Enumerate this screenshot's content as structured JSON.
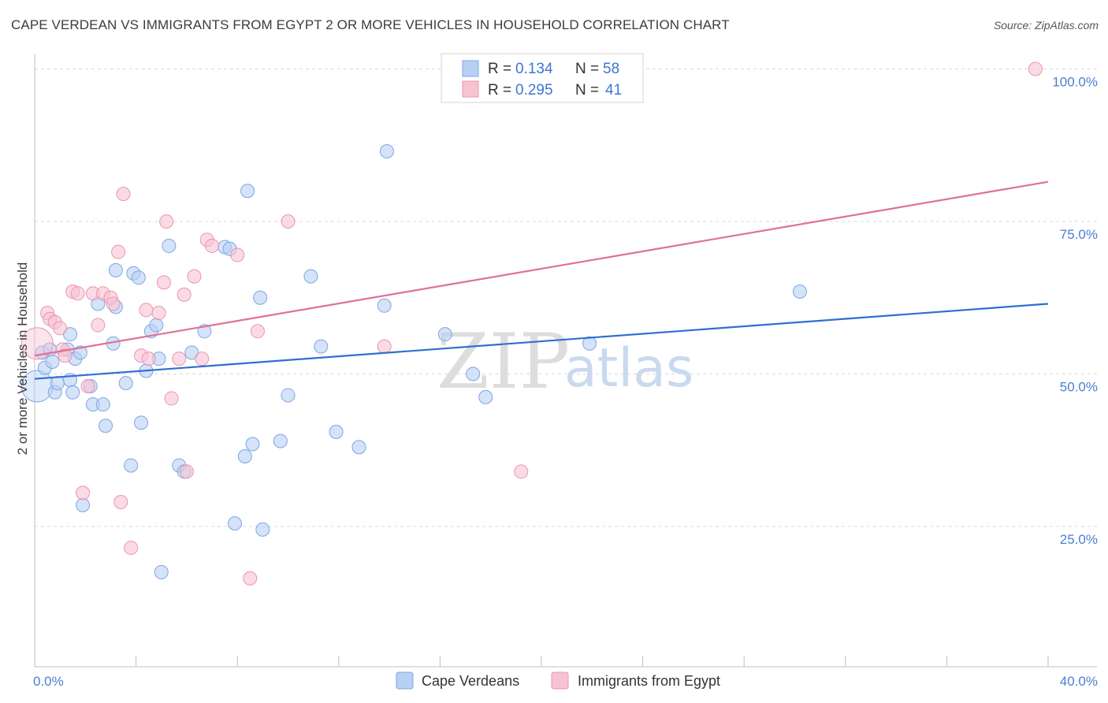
{
  "title": "CAPE VERDEAN VS IMMIGRANTS FROM EGYPT 2 OR MORE VEHICLES IN HOUSEHOLD CORRELATION CHART",
  "source": "Source: ZipAtlas.com",
  "watermark": {
    "part1": "ZIP",
    "part2": "atlas"
  },
  "colors": {
    "blue_fill": "#b7d0f3",
    "blue_stroke": "#7da6e4",
    "blue_line": "#2f6fd1",
    "pink_fill": "#f7c3d3",
    "pink_stroke": "#ec93ae",
    "pink_line": "#e07097",
    "grid": "#d9d9d9",
    "axis_text": "#4a7fd1"
  },
  "legend": {
    "rows": [
      {
        "r_label": "R =",
        "r_value": "0.134",
        "n_label": "N =",
        "n_value": "58",
        "series": "blue"
      },
      {
        "r_label": "R =",
        "r_value": "0.295",
        "n_label": "N =",
        "n_value": "41",
        "series": "pink"
      }
    ]
  },
  "bottom_legend": [
    {
      "label": "Cape Verdeans",
      "series": "blue"
    },
    {
      "label": "Immigrants from Egypt",
      "series": "pink"
    }
  ],
  "chart_data": {
    "type": "scatter",
    "title": "CAPE VERDEAN VS IMMIGRANTS FROM EGYPT 2 OR MORE VEHICLES IN HOUSEHOLD CORRELATION CHART",
    "xlabel": "",
    "ylabel": "2 or more Vehicles in Household",
    "xlim": [
      0,
      40
    ],
    "ylim": [
      2,
      102
    ],
    "x_tick_labels": [
      {
        "value": 0,
        "label": "0.0%"
      },
      {
        "value": 40,
        "label": "40.0%"
      }
    ],
    "y_tick_labels": [
      {
        "value": 25,
        "label": "25.0%"
      },
      {
        "value": 50,
        "label": "50.0%"
      },
      {
        "value": 75,
        "label": "75.0%"
      },
      {
        "value": 100,
        "label": "100.0%"
      }
    ],
    "y_gridlines": [
      25,
      50,
      75,
      100
    ],
    "x_minor_ticks": [
      0,
      4,
      8,
      12,
      16,
      20,
      24,
      28,
      32,
      36,
      40
    ],
    "series": [
      {
        "name": "Cape Verdeans",
        "color": "blue",
        "r": 0.134,
        "n": 58,
        "trend": {
          "x": [
            0,
            40
          ],
          "y": [
            49.2,
            61.5
          ]
        },
        "points": [
          {
            "x": 0.1,
            "y": 48.0,
            "big": true
          },
          {
            "x": 0.3,
            "y": 53.5
          },
          {
            "x": 0.4,
            "y": 51.0
          },
          {
            "x": 0.6,
            "y": 54.0
          },
          {
            "x": 0.7,
            "y": 52.0
          },
          {
            "x": 0.8,
            "y": 47.0
          },
          {
            "x": 0.9,
            "y": 48.5
          },
          {
            "x": 1.3,
            "y": 54.0
          },
          {
            "x": 1.4,
            "y": 49.0
          },
          {
            "x": 1.4,
            "y": 56.5
          },
          {
            "x": 1.5,
            "y": 47.0
          },
          {
            "x": 1.6,
            "y": 52.5
          },
          {
            "x": 1.8,
            "y": 53.5
          },
          {
            "x": 1.9,
            "y": 28.5
          },
          {
            "x": 2.2,
            "y": 48.0
          },
          {
            "x": 2.3,
            "y": 45.0
          },
          {
            "x": 2.5,
            "y": 61.5
          },
          {
            "x": 2.7,
            "y": 45.0
          },
          {
            "x": 2.8,
            "y": 41.5
          },
          {
            "x": 3.1,
            "y": 55.0
          },
          {
            "x": 3.2,
            "y": 67.0
          },
          {
            "x": 3.2,
            "y": 61.0
          },
          {
            "x": 3.6,
            "y": 48.5
          },
          {
            "x": 3.8,
            "y": 35.0
          },
          {
            "x": 3.9,
            "y": 66.5
          },
          {
            "x": 4.1,
            "y": 65.8
          },
          {
            "x": 4.2,
            "y": 42.0
          },
          {
            "x": 4.4,
            "y": 50.5
          },
          {
            "x": 4.6,
            "y": 57.0
          },
          {
            "x": 4.8,
            "y": 58.0
          },
          {
            "x": 4.9,
            "y": 52.5
          },
          {
            "x": 5.0,
            "y": 17.5
          },
          {
            "x": 5.3,
            "y": 71.0
          },
          {
            "x": 5.7,
            "y": 35.0
          },
          {
            "x": 5.9,
            "y": 34.0
          },
          {
            "x": 6.2,
            "y": 53.5
          },
          {
            "x": 6.7,
            "y": 57.0
          },
          {
            "x": 7.5,
            "y": 70.8
          },
          {
            "x": 7.7,
            "y": 70.5
          },
          {
            "x": 7.9,
            "y": 25.5
          },
          {
            "x": 8.3,
            "y": 36.5
          },
          {
            "x": 8.4,
            "y": 80.0
          },
          {
            "x": 8.6,
            "y": 38.5
          },
          {
            "x": 8.9,
            "y": 62.5
          },
          {
            "x": 9.0,
            "y": 24.5
          },
          {
            "x": 9.7,
            "y": 39.0
          },
          {
            "x": 10.0,
            "y": 46.5
          },
          {
            "x": 10.9,
            "y": 66.0
          },
          {
            "x": 11.3,
            "y": 54.5
          },
          {
            "x": 11.9,
            "y": 40.5
          },
          {
            "x": 12.8,
            "y": 38.0
          },
          {
            "x": 13.8,
            "y": 61.2
          },
          {
            "x": 13.9,
            "y": 86.5
          },
          {
            "x": 16.2,
            "y": 56.5
          },
          {
            "x": 17.3,
            "y": 50.0
          },
          {
            "x": 17.8,
            "y": 46.2
          },
          {
            "x": 21.9,
            "y": 55.0
          },
          {
            "x": 30.2,
            "y": 63.5
          }
        ]
      },
      {
        "name": "Immigrants from Egypt",
        "color": "pink",
        "r": 0.295,
        "n": 41,
        "trend": {
          "x": [
            0,
            40
          ],
          "y": [
            53.0,
            81.5
          ]
        },
        "points": [
          {
            "x": 0.1,
            "y": 55.0,
            "big": true
          },
          {
            "x": 0.5,
            "y": 60.0
          },
          {
            "x": 0.6,
            "y": 59.0
          },
          {
            "x": 0.8,
            "y": 58.5
          },
          {
            "x": 1.0,
            "y": 57.5
          },
          {
            "x": 1.1,
            "y": 54.0
          },
          {
            "x": 1.2,
            "y": 53.0
          },
          {
            "x": 1.5,
            "y": 63.5
          },
          {
            "x": 1.7,
            "y": 63.2
          },
          {
            "x": 1.9,
            "y": 30.5
          },
          {
            "x": 2.1,
            "y": 48.0
          },
          {
            "x": 2.3,
            "y": 63.2
          },
          {
            "x": 2.5,
            "y": 58.0
          },
          {
            "x": 2.7,
            "y": 63.2
          },
          {
            "x": 3.0,
            "y": 62.5
          },
          {
            "x": 3.1,
            "y": 61.5
          },
          {
            "x": 3.3,
            "y": 70.0
          },
          {
            "x": 3.4,
            "y": 29.0
          },
          {
            "x": 3.5,
            "y": 79.5
          },
          {
            "x": 3.8,
            "y": 21.5
          },
          {
            "x": 4.2,
            "y": 53.0
          },
          {
            "x": 4.4,
            "y": 60.5
          },
          {
            "x": 4.5,
            "y": 52.5
          },
          {
            "x": 4.9,
            "y": 60.0
          },
          {
            "x": 5.1,
            "y": 65.0
          },
          {
            "x": 5.2,
            "y": 75.0
          },
          {
            "x": 5.4,
            "y": 46.0
          },
          {
            "x": 5.7,
            "y": 52.5
          },
          {
            "x": 5.9,
            "y": 63.0
          },
          {
            "x": 6.0,
            "y": 34.0
          },
          {
            "x": 6.3,
            "y": 66.0
          },
          {
            "x": 6.6,
            "y": 52.5
          },
          {
            "x": 6.8,
            "y": 72.0
          },
          {
            "x": 7.0,
            "y": 71.0
          },
          {
            "x": 8.0,
            "y": 69.5
          },
          {
            "x": 8.5,
            "y": 16.5
          },
          {
            "x": 8.8,
            "y": 57.0
          },
          {
            "x": 10.0,
            "y": 75.0
          },
          {
            "x": 13.8,
            "y": 54.5
          },
          {
            "x": 19.2,
            "y": 34.0
          },
          {
            "x": 39.5,
            "y": 100.0
          }
        ]
      }
    ]
  }
}
